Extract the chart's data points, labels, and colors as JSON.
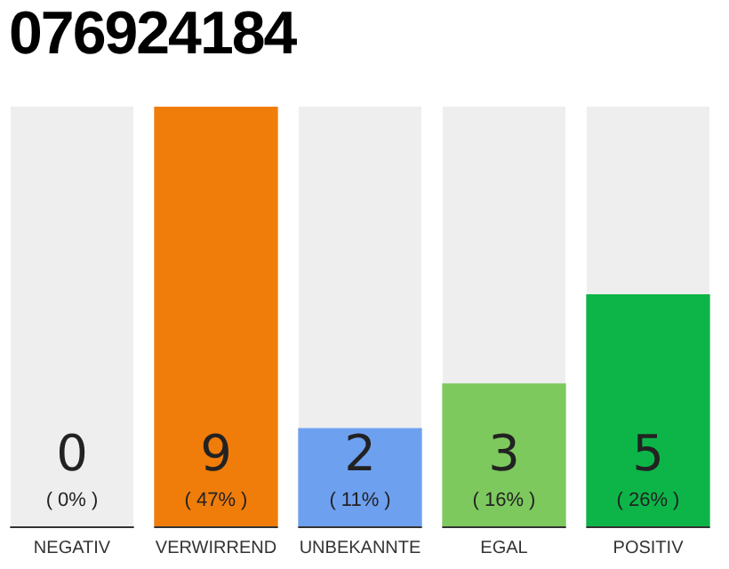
{
  "chart_data": {
    "type": "bar",
    "title": "076924184",
    "categories": [
      "NEGATIV",
      "VERWIRREND",
      "UNBEKANNTE",
      "EGAL",
      "POSITIV"
    ],
    "values": [
      0,
      47,
      11,
      16,
      26
    ],
    "colors": [
      "#c8c8c8",
      "#f07c0a",
      "#6ea0f0",
      "#7dc95e",
      "#0db548"
    ],
    "value_labels": [
      "( 0% )",
      "( 47% )",
      "( 11% )",
      "( 16% )",
      "( 26% )"
    ],
    "annotations": [
      "0",
      "9",
      "2",
      "3",
      "5"
    ],
    "tick_labels": "x",
    "grid": false,
    "legend": false
  }
}
